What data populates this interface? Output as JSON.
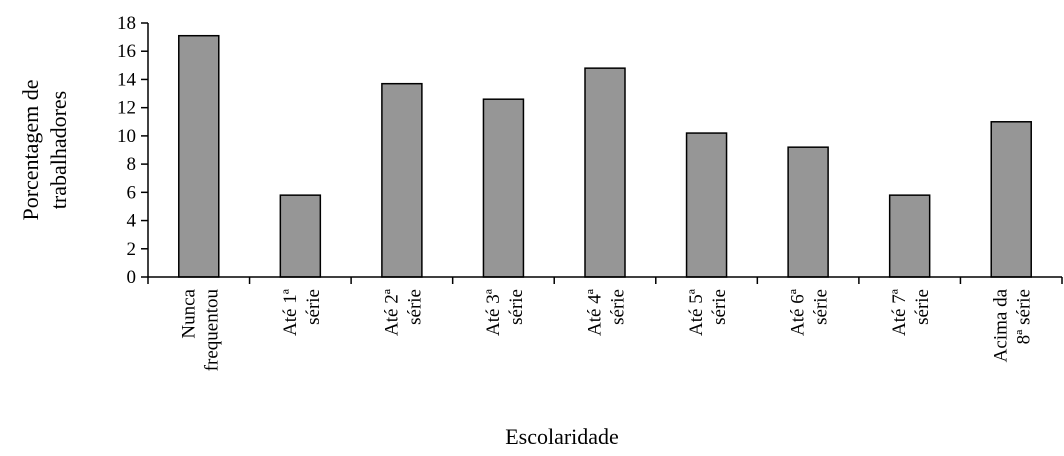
{
  "chart_data": {
    "type": "bar",
    "categories": [
      [
        "Nunca",
        "frequentou"
      ],
      [
        "Até 1ª",
        "série"
      ],
      [
        "Até 2ª",
        "série"
      ],
      [
        "Até 3ª",
        "série"
      ],
      [
        "Até 4ª",
        "série"
      ],
      [
        "Até 5ª",
        "série"
      ],
      [
        "Até 6ª",
        "série"
      ],
      [
        "Até 7ª",
        "série"
      ],
      [
        "Acima da",
        "8ª série"
      ]
    ],
    "values": [
      17.1,
      5.8,
      13.7,
      12.6,
      14.8,
      10.2,
      9.2,
      5.8,
      11.0
    ],
    "xlabel": "Escolaridade",
    "ylabel": [
      "Porcentagem de",
      "trabalhadores"
    ],
    "ylim": [
      0,
      18
    ],
    "yticks": [
      0,
      2,
      4,
      6,
      8,
      10,
      12,
      14,
      16,
      18
    ],
    "grid": false,
    "legend": "none",
    "colors": {
      "bar_fill": "#969696",
      "bar_stroke": "#000000",
      "axis": "#000000"
    }
  }
}
